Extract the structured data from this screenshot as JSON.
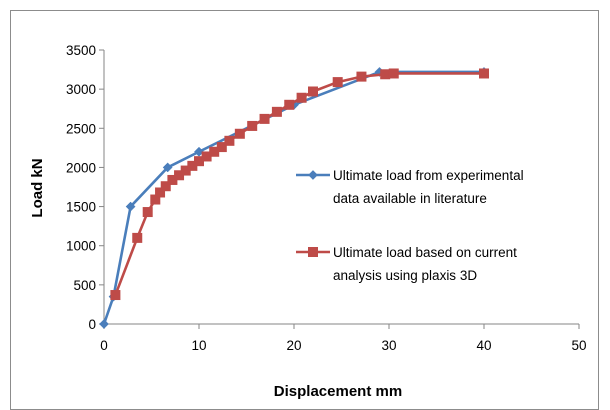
{
  "chart_data": {
    "type": "line",
    "title": "",
    "xlabel": "Displacement mm",
    "ylabel": "Load kN",
    "xlim": [
      0,
      50
    ],
    "ylim": [
      0,
      3500
    ],
    "x_ticks": [
      0,
      10,
      20,
      30,
      40,
      50
    ],
    "y_ticks": [
      0,
      500,
      1000,
      1500,
      2000,
      2500,
      3000,
      3500
    ],
    "grid": false,
    "legend_position": "right",
    "series": [
      {
        "name": "Ultimate load from experimental data available in literature",
        "legend_lines": [
          "Ultimate load from experimental",
          "data available in literature"
        ],
        "color": "#4a7ebb",
        "marker": "diamond",
        "points": [
          [
            0,
            0
          ],
          [
            1,
            350
          ],
          [
            2.8,
            1500
          ],
          [
            6.7,
            2000
          ],
          [
            10,
            2200
          ],
          [
            20,
            2800
          ],
          [
            29,
            3220
          ],
          [
            40,
            3220
          ]
        ]
      },
      {
        "name": "Ultimate load based on current analysis using plaxis 3D",
        "legend_lines": [
          "Ultimate load based on current",
          "analysis using plaxis 3D"
        ],
        "color": "#be4b48",
        "marker": "square",
        "points": [
          [
            1.2,
            370
          ],
          [
            3.5,
            1100
          ],
          [
            4.6,
            1430
          ],
          [
            5.4,
            1590
          ],
          [
            5.9,
            1680
          ],
          [
            6.5,
            1760
          ],
          [
            7.2,
            1840
          ],
          [
            7.9,
            1900
          ],
          [
            8.6,
            1960
          ],
          [
            9.3,
            2020
          ],
          [
            10.0,
            2080
          ],
          [
            10.8,
            2140
          ],
          [
            11.6,
            2200
          ],
          [
            12.4,
            2260
          ],
          [
            13.2,
            2340
          ],
          [
            14.3,
            2430
          ],
          [
            15.6,
            2530
          ],
          [
            16.9,
            2620
          ],
          [
            18.2,
            2710
          ],
          [
            19.5,
            2800
          ],
          [
            20.8,
            2890
          ],
          [
            22.0,
            2970
          ],
          [
            24.6,
            3090
          ],
          [
            27.1,
            3160
          ],
          [
            29.6,
            3190
          ],
          [
            30.5,
            3200
          ],
          [
            40,
            3200
          ]
        ]
      }
    ]
  }
}
